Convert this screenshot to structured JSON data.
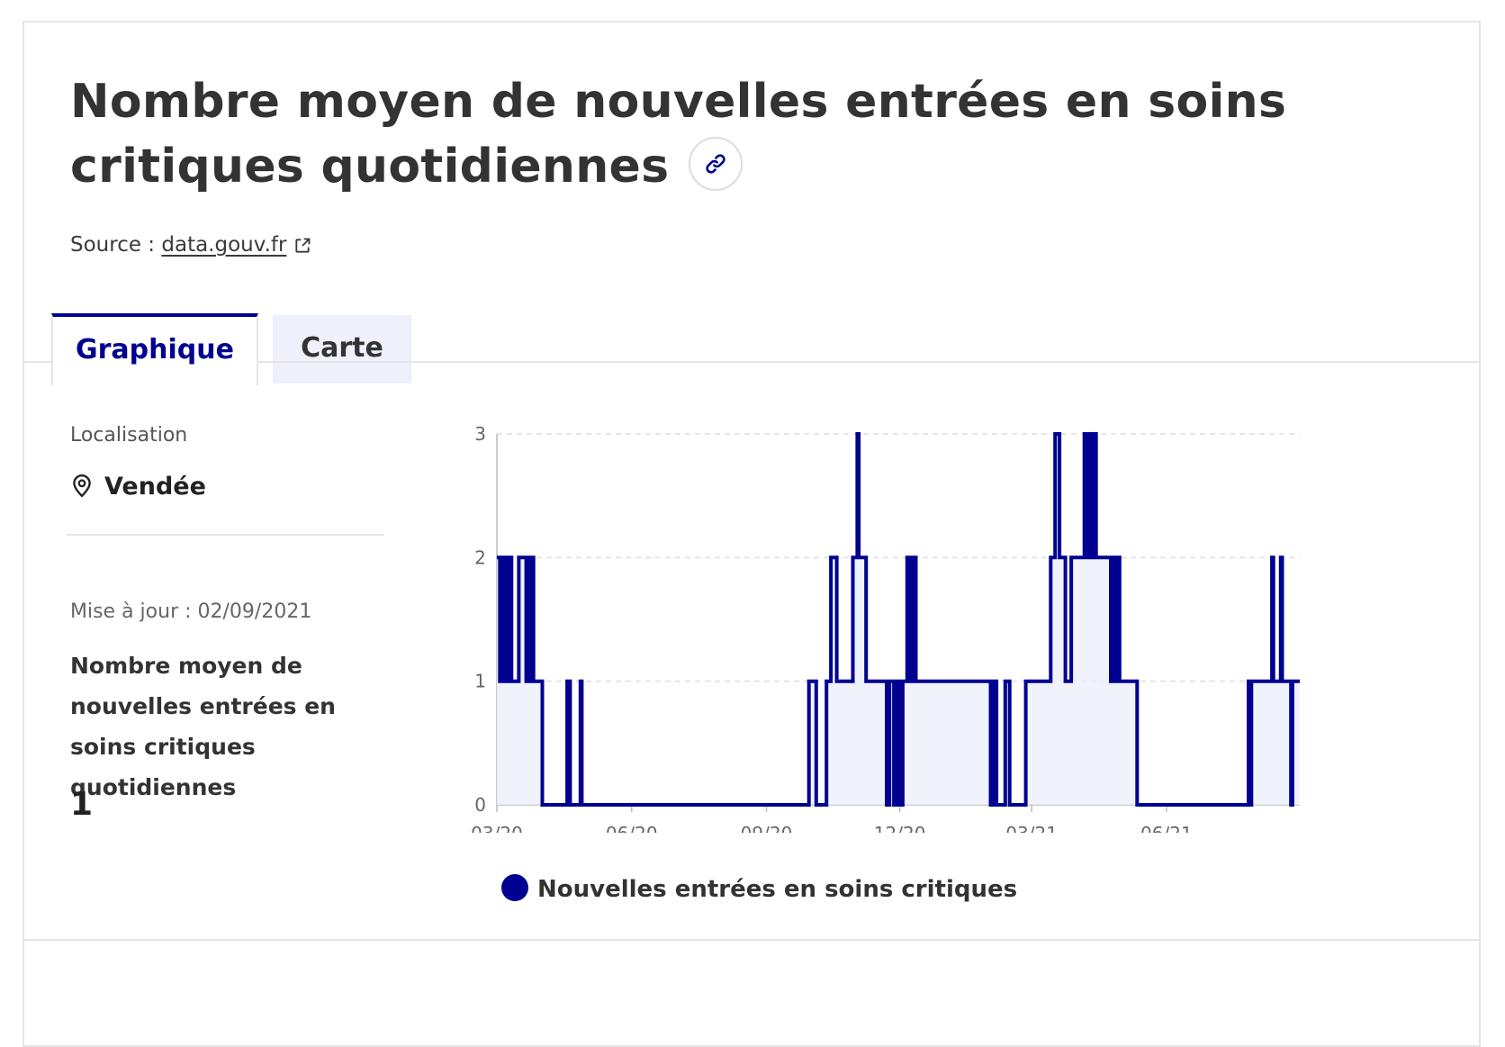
{
  "header": {
    "title": "Nombre moyen de nouvelles entrées en soins critiques quotidiennes",
    "source_prefix": "Source :",
    "source_link": "data.gouv.fr"
  },
  "tabs": [
    {
      "label": "Graphique",
      "active": true
    },
    {
      "label": "Carte",
      "active": false
    }
  ],
  "sidebar": {
    "location_label": "Localisation",
    "location_value": "Vendée",
    "update_text": "Mise à jour : 02/09/2021",
    "kpi_label": "Nombre moyen de nouvelles entrées en soins critiques quotidiennes",
    "kpi_value": "1"
  },
  "colors": {
    "accent": "#000091",
    "area_fill": "#eef0fb",
    "grid": "#dddddd"
  },
  "chart_data": {
    "type": "area",
    "series": [
      {
        "name": "Nouvelles entrées en soins critiques",
        "points": [
          [
            "2020-03-01",
            2
          ],
          [
            "2020-03-03",
            1
          ],
          [
            "2020-03-05",
            2
          ],
          [
            "2020-03-07",
            1
          ],
          [
            "2020-03-09",
            2
          ],
          [
            "2020-03-11",
            1
          ],
          [
            "2020-03-14",
            1
          ],
          [
            "2020-03-16",
            2
          ],
          [
            "2020-03-21",
            1
          ],
          [
            "2020-03-22",
            2
          ],
          [
            "2020-03-24",
            1
          ],
          [
            "2020-03-25",
            2
          ],
          [
            "2020-03-26",
            1
          ],
          [
            "2020-04-01",
            0
          ],
          [
            "2020-04-18",
            1
          ],
          [
            "2020-04-20",
            0
          ],
          [
            "2020-04-27",
            1
          ],
          [
            "2020-04-28",
            0
          ],
          [
            "2020-09-30",
            1
          ],
          [
            "2020-10-05",
            0
          ],
          [
            "2020-10-12",
            1
          ],
          [
            "2020-10-15",
            2
          ],
          [
            "2020-10-19",
            1
          ],
          [
            "2020-10-30",
            2
          ],
          [
            "2020-11-02",
            3
          ],
          [
            "2020-11-03",
            2
          ],
          [
            "2020-11-08",
            1
          ],
          [
            "2020-11-22",
            0
          ],
          [
            "2020-11-24",
            1
          ],
          [
            "2020-11-27",
            0
          ],
          [
            "2020-11-29",
            1
          ],
          [
            "2020-12-01",
            0
          ],
          [
            "2020-12-03",
            1
          ],
          [
            "2020-12-06",
            2
          ],
          [
            "2020-12-08",
            1
          ],
          [
            "2020-12-10",
            2
          ],
          [
            "2020-12-12",
            1
          ],
          [
            "2021-02-01",
            0
          ],
          [
            "2021-02-03",
            1
          ],
          [
            "2021-02-05",
            0
          ],
          [
            "2021-02-11",
            1
          ],
          [
            "2021-02-14",
            0
          ],
          [
            "2021-02-25",
            1
          ],
          [
            "2021-03-14",
            2
          ],
          [
            "2021-03-17",
            3
          ],
          [
            "2021-03-20",
            2
          ],
          [
            "2021-03-24",
            1
          ],
          [
            "2021-03-28",
            2
          ],
          [
            "2021-04-06",
            3
          ],
          [
            "2021-04-08",
            2
          ],
          [
            "2021-04-09",
            3
          ],
          [
            "2021-04-10",
            2
          ],
          [
            "2021-04-11",
            3
          ],
          [
            "2021-04-12",
            2
          ],
          [
            "2021-04-13",
            3
          ],
          [
            "2021-04-14",
            2
          ],
          [
            "2021-04-24",
            1
          ],
          [
            "2021-04-25",
            2
          ],
          [
            "2021-04-26",
            1
          ],
          [
            "2021-04-27",
            2
          ],
          [
            "2021-04-28",
            1
          ],
          [
            "2021-04-29",
            2
          ],
          [
            "2021-04-30",
            1
          ],
          [
            "2021-05-12",
            0
          ],
          [
            "2021-07-27",
            1
          ],
          [
            "2021-07-28",
            0
          ],
          [
            "2021-07-29",
            1
          ],
          [
            "2021-08-12",
            2
          ],
          [
            "2021-08-13",
            1
          ],
          [
            "2021-08-18",
            2
          ],
          [
            "2021-08-19",
            1
          ],
          [
            "2021-08-25",
            0
          ],
          [
            "2021-08-26",
            1
          ],
          [
            "2021-08-31",
            1
          ]
        ]
      }
    ],
    "x_ticks": [
      "03/20",
      "06/20",
      "09/20",
      "12/20",
      "03/21",
      "06/21"
    ],
    "y_ticks": [
      0,
      1,
      2,
      3
    ],
    "ylim": [
      0,
      3
    ],
    "xlim": [
      "2020-03-01",
      "2021-08-31"
    ],
    "x_tick_dates": [
      "2020-03-01",
      "2020-06-01",
      "2020-09-01",
      "2020-12-01",
      "2021-03-01",
      "2021-06-01"
    ],
    "grid": "horizontal dashed",
    "legend": "bottom",
    "title": "",
    "xlabel": "",
    "ylabel": ""
  }
}
